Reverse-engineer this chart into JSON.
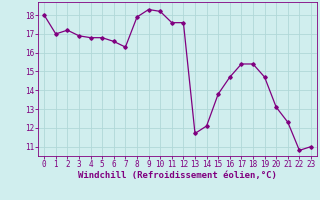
{
  "x": [
    0,
    1,
    2,
    3,
    4,
    5,
    6,
    7,
    8,
    9,
    10,
    11,
    12,
    13,
    14,
    15,
    16,
    17,
    18,
    19,
    20,
    21,
    22,
    23
  ],
  "y": [
    18.0,
    17.0,
    17.2,
    16.9,
    16.8,
    16.8,
    16.6,
    16.3,
    17.9,
    18.3,
    18.2,
    17.6,
    17.6,
    11.7,
    12.1,
    13.8,
    14.7,
    15.4,
    15.4,
    14.7,
    13.1,
    12.3,
    10.8,
    11.0
  ],
  "line_color": "#800080",
  "marker": "D",
  "marker_size": 1.8,
  "line_width": 0.9,
  "bg_color": "#d0eeee",
  "grid_color": "#b0d8d8",
  "xlabel": "Windchill (Refroidissement éolien,°C)",
  "xlabel_fontsize": 6.5,
  "tick_fontsize": 5.5,
  "xlim": [
    -0.5,
    23.5
  ],
  "ylim": [
    10.5,
    18.7
  ],
  "yticks": [
    11,
    12,
    13,
    14,
    15,
    16,
    17,
    18
  ],
  "xticks": [
    0,
    1,
    2,
    3,
    4,
    5,
    6,
    7,
    8,
    9,
    10,
    11,
    12,
    13,
    14,
    15,
    16,
    17,
    18,
    19,
    20,
    21,
    22,
    23
  ]
}
